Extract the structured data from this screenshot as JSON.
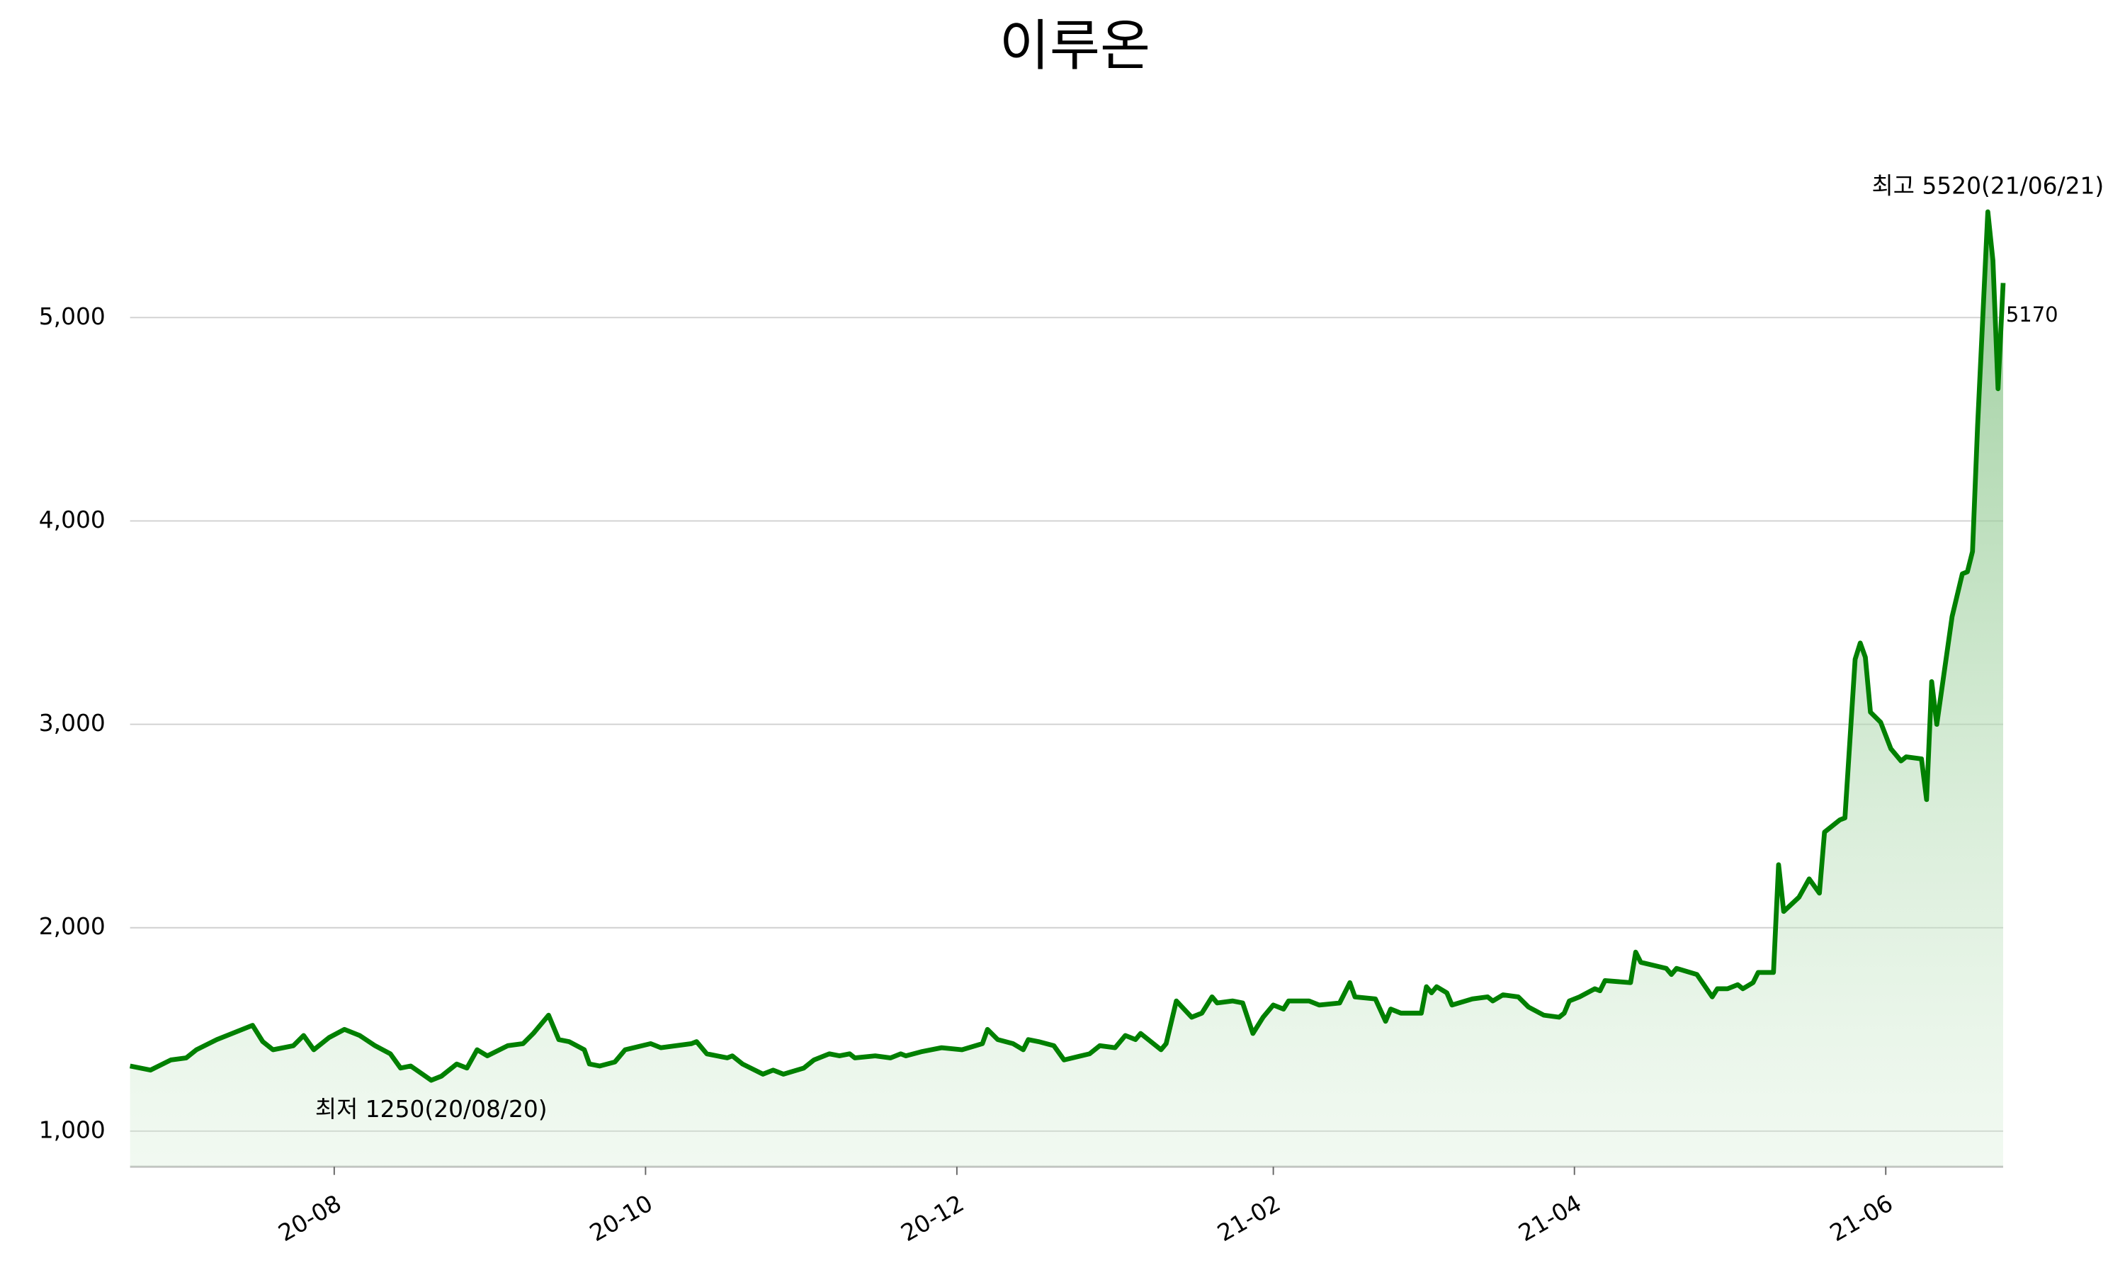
{
  "chart_data": {
    "type": "line",
    "title": "이루온",
    "x": [
      "2020-06-22",
      "2020-06-26",
      "2020-06-30",
      "2020-07-03",
      "2020-07-05",
      "2020-07-09",
      "2020-07-13",
      "2020-07-16",
      "2020-07-18",
      "2020-07-20",
      "2020-07-24",
      "2020-07-26",
      "2020-07-28",
      "2020-07-31",
      "2020-08-03",
      "2020-08-06",
      "2020-08-09",
      "2020-08-12",
      "2020-08-14",
      "2020-08-16",
      "2020-08-20",
      "2020-08-22",
      "2020-08-25",
      "2020-08-27",
      "2020-08-29",
      "2020-08-31",
      "2020-09-04",
      "2020-09-07",
      "2020-09-09",
      "2020-09-12",
      "2020-09-14",
      "2020-09-16",
      "2020-09-19",
      "2020-09-20",
      "2020-09-22",
      "2020-09-25",
      "2020-09-27",
      "2020-10-02",
      "2020-10-04",
      "2020-10-10",
      "2020-10-11",
      "2020-10-13",
      "2020-10-17",
      "2020-10-18",
      "2020-10-20",
      "2020-10-24",
      "2020-10-26",
      "2020-10-28",
      "2020-11-01",
      "2020-11-03",
      "2020-11-06",
      "2020-11-08",
      "2020-11-10",
      "2020-11-11",
      "2020-11-15",
      "2020-11-18",
      "2020-11-20",
      "2020-11-21",
      "2020-11-24",
      "2020-11-28",
      "2020-12-02",
      "2020-12-06",
      "2020-12-07",
      "2020-12-09",
      "2020-12-12",
      "2020-12-14",
      "2020-12-15",
      "2020-12-17",
      "2020-12-20",
      "2020-12-22",
      "2020-12-27",
      "2020-12-29",
      "2021-01-01",
      "2021-01-03",
      "2021-01-05",
      "2021-01-06",
      "2021-01-10",
      "2021-01-11",
      "2021-01-13",
      "2021-01-16",
      "2021-01-18",
      "2021-01-20",
      "2021-01-21",
      "2021-01-24",
      "2021-01-26",
      "2021-01-28",
      "2021-01-30",
      "2021-02-01",
      "2021-02-03",
      "2021-02-04",
      "2021-02-08",
      "2021-02-10",
      "2021-02-14",
      "2021-02-16",
      "2021-02-17",
      "2021-02-21",
      "2021-02-23",
      "2021-02-24",
      "2021-02-26",
      "2021-03-02",
      "2021-03-03",
      "2021-03-04",
      "2021-03-05",
      "2021-03-07",
      "2021-03-08",
      "2021-03-12",
      "2021-03-15",
      "2021-03-16",
      "2021-03-18",
      "2021-03-21",
      "2021-03-23",
      "2021-03-26",
      "2021-03-29",
      "2021-03-30",
      "2021-03-31",
      "2021-04-02",
      "2021-04-05",
      "2021-04-06",
      "2021-04-07",
      "2021-04-12",
      "2021-04-13",
      "2021-04-14",
      "2021-04-19",
      "2021-04-20",
      "2021-04-21",
      "2021-04-25",
      "2021-04-28",
      "2021-04-29",
      "2021-05-01",
      "2021-05-03",
      "2021-05-04",
      "2021-05-06",
      "2021-05-07",
      "2021-05-10",
      "2021-05-11",
      "2021-05-12",
      "2021-05-15",
      "2021-05-17",
      "2021-05-19",
      "2021-05-20",
      "2021-05-23",
      "2021-05-24",
      "2021-05-26",
      "2021-05-27",
      "2021-05-28",
      "2021-05-29",
      "2021-05-31",
      "2021-06-02",
      "2021-06-04",
      "2021-06-05",
      "2021-06-08",
      "2021-06-09",
      "2021-06-10",
      "2021-06-11",
      "2021-06-14",
      "2021-06-16",
      "2021-06-17",
      "2021-06-18",
      "2021-06-19",
      "2021-06-21",
      "2021-06-22",
      "2021-06-23",
      "2021-06-24"
    ],
    "values": [
      1320,
      1300,
      1350,
      1360,
      1400,
      1450,
      1490,
      1520,
      1440,
      1400,
      1420,
      1470,
      1400,
      1460,
      1500,
      1470,
      1420,
      1380,
      1310,
      1320,
      1250,
      1270,
      1330,
      1310,
      1400,
      1370,
      1420,
      1430,
      1480,
      1570,
      1450,
      1440,
      1400,
      1330,
      1320,
      1340,
      1400,
      1430,
      1410,
      1430,
      1440,
      1380,
      1360,
      1370,
      1330,
      1280,
      1300,
      1280,
      1310,
      1350,
      1380,
      1370,
      1380,
      1360,
      1370,
      1360,
      1380,
      1370,
      1390,
      1410,
      1400,
      1430,
      1500,
      1450,
      1430,
      1400,
      1450,
      1440,
      1420,
      1350,
      1380,
      1420,
      1410,
      1470,
      1450,
      1480,
      1400,
      1430,
      1640,
      1560,
      1580,
      1660,
      1630,
      1640,
      1630,
      1480,
      1560,
      1620,
      1600,
      1640,
      1640,
      1620,
      1630,
      1730,
      1660,
      1650,
      1540,
      1600,
      1580,
      1580,
      1710,
      1680,
      1710,
      1680,
      1620,
      1650,
      1660,
      1640,
      1670,
      1660,
      1610,
      1570,
      1560,
      1580,
      1640,
      1660,
      1700,
      1690,
      1740,
      1730,
      1880,
      1830,
      1800,
      1770,
      1800,
      1770,
      1660,
      1700,
      1700,
      1720,
      1700,
      1730,
      1780,
      1780,
      2310,
      2080,
      2150,
      2240,
      2170,
      2470,
      2530,
      2540,
      3320,
      3400,
      3330,
      3060,
      3010,
      2880,
      2820,
      2840,
      2830,
      2630,
      3210,
      3000,
      3530,
      3740,
      3750,
      3850,
      4470,
      5520,
      5280,
      4650,
      5170
    ],
    "color": "#008000",
    "xlim": [
      "2020-06-22",
      "2021-06-24"
    ],
    "xticks": [
      {
        "value": "2020-08-01",
        "label": "20-08"
      },
      {
        "value": "2020-10-01",
        "label": "20-10"
      },
      {
        "value": "2020-12-01",
        "label": "20-12"
      },
      {
        "value": "2021-02-01",
        "label": "21-02"
      },
      {
        "value": "2021-04-01",
        "label": "21-04"
      },
      {
        "value": "2021-06-01",
        "label": "21-06"
      }
    ],
    "ylim": [
      825,
      5800
    ],
    "yticks": [
      {
        "value": 1000,
        "label": "1,000"
      },
      {
        "value": 2000,
        "label": "2,000"
      },
      {
        "value": 3000,
        "label": "3,000"
      },
      {
        "value": 4000,
        "label": "4,000"
      },
      {
        "value": 5000,
        "label": "5,000"
      }
    ],
    "grid": true,
    "annotations": [
      {
        "text": "최고 5520(21/06/21)",
        "x": "2021-06-21",
        "color": "#ff0000"
      },
      {
        "text": "최저 1250(20/08/20)",
        "x": "2020-08-20",
        "color": "#0000ff"
      }
    ]
  }
}
